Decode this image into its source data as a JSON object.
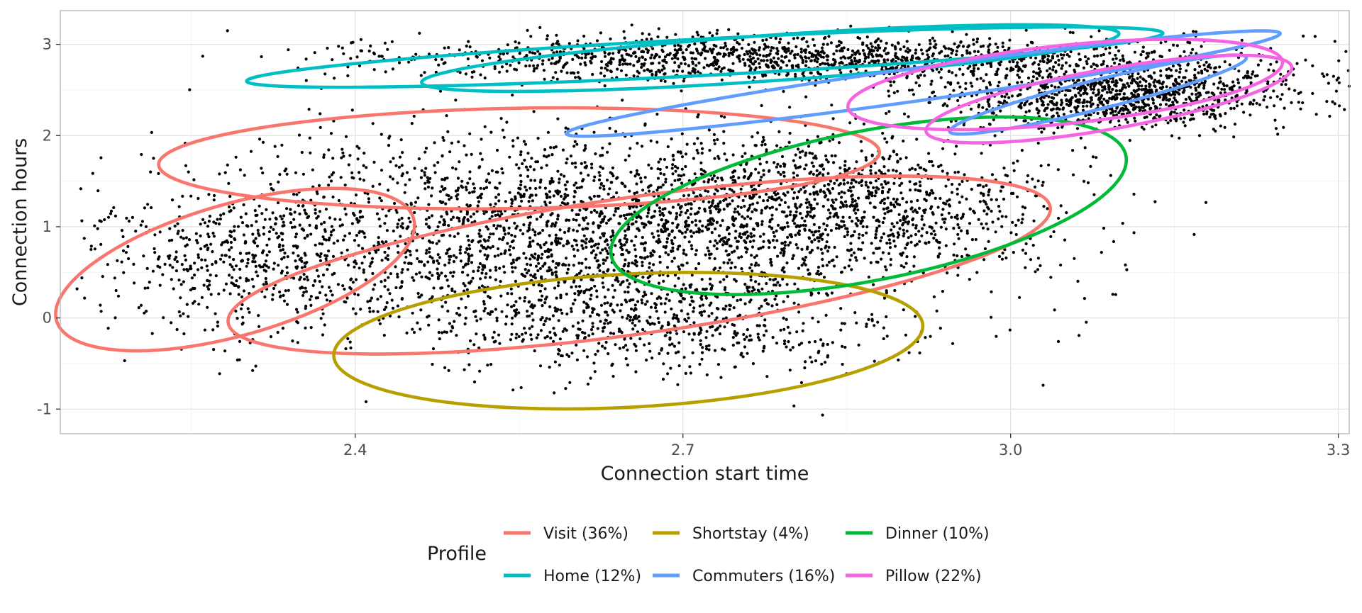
{
  "chart_data": {
    "type": "scatter",
    "xlabel": "Connection start time",
    "ylabel": "Connection hours",
    "xlim": [
      2.13,
      3.31
    ],
    "ylim": [
      -1.27,
      3.37
    ],
    "xticks": [
      2.4,
      2.7,
      3.0,
      3.3
    ],
    "xtick_labels": [
      "2.4",
      "2.7",
      "3.0",
      "3.3"
    ],
    "yticks": [
      -1,
      0,
      1,
      2,
      3
    ],
    "ytick_labels": [
      "-1",
      "0",
      "1",
      "2",
      "3"
    ],
    "grid": true,
    "legend": {
      "title": "Profile",
      "placement": "bottom",
      "items": [
        {
          "label": "Visit (36%)",
          "color": "#F8766D"
        },
        {
          "label": "Shortstay (4%)",
          "color": "#B79F00"
        },
        {
          "label": "Dinner (10%)",
          "color": "#00BA38"
        },
        {
          "label": "Home (12%)",
          "color": "#00BFC4"
        },
        {
          "label": "Commuters (16%)",
          "color": "#619CFF"
        },
        {
          "label": "Pillow (22%)",
          "color": "#F564E3"
        }
      ]
    },
    "point_clouds": [
      {
        "center": [
          2.6,
          0.95
        ],
        "spread": [
          0.17,
          0.55
        ],
        "count": 2600
      },
      {
        "center": [
          2.85,
          1.25
        ],
        "spread": [
          0.09,
          0.38
        ],
        "count": 900
      },
      {
        "center": [
          2.3,
          0.6
        ],
        "spread": [
          0.07,
          0.4
        ],
        "count": 400
      },
      {
        "center": [
          2.68,
          -0.1
        ],
        "spread": [
          0.11,
          0.28
        ],
        "count": 500
      },
      {
        "center": [
          2.8,
          2.85
        ],
        "spread": [
          0.19,
          0.12
        ],
        "count": 1400
      },
      {
        "center": [
          3.1,
          2.45
        ],
        "spread": [
          0.08,
          0.18
        ],
        "count": 1100
      }
    ],
    "ellipses": [
      {
        "series": "Visit (36%)",
        "color": "#F8766D",
        "center": [
          2.66,
          0.58
        ],
        "semi_axes": [
          0.38,
          0.75
        ],
        "angle_deg": -8
      },
      {
        "series": "Visit (36%)",
        "color": "#F8766D",
        "center": [
          2.55,
          1.75
        ],
        "semi_axes": [
          0.33,
          0.55
        ],
        "angle_deg": -1
      },
      {
        "series": "Visit (36%)",
        "color": "#F8766D",
        "center": [
          2.29,
          0.53
        ],
        "semi_axes": [
          0.17,
          0.72
        ],
        "angle_deg": -16
      },
      {
        "series": "Shortstay (4%)",
        "color": "#B79F00",
        "center": [
          2.65,
          -0.25
        ],
        "semi_axes": [
          0.27,
          0.73
        ],
        "angle_deg": -3
      },
      {
        "series": "Dinner (10%)",
        "color": "#00BA38",
        "center": [
          2.87,
          1.23
        ],
        "semi_axes": [
          0.24,
          0.82
        ],
        "angle_deg": -11
      },
      {
        "series": "Home (12%)",
        "color": "#00BFC4",
        "center": [
          2.72,
          2.86
        ],
        "semi_axes": [
          0.42,
          0.2
        ],
        "angle_deg": -3
      },
      {
        "series": "Home (12%)",
        "color": "#00BFC4",
        "center": [
          2.78,
          2.85
        ],
        "semi_axes": [
          0.32,
          0.25
        ],
        "angle_deg": -4
      },
      {
        "series": "Commuters (16%)",
        "color": "#619CFF",
        "center": [
          2.92,
          2.57
        ],
        "semi_axes": [
          0.33,
          0.18
        ],
        "angle_deg": -8
      },
      {
        "series": "Commuters (16%)",
        "color": "#619CFF",
        "center": [
          3.08,
          2.45
        ],
        "semi_axes": [
          0.14,
          0.16
        ],
        "angle_deg": -14
      },
      {
        "series": "Pillow (22%)",
        "color": "#F564E3",
        "center": [
          3.05,
          2.56
        ],
        "semi_axes": [
          0.2,
          0.43
        ],
        "angle_deg": -6
      },
      {
        "series": "Pillow (22%)",
        "color": "#F564E3",
        "center": [
          3.09,
          2.4
        ],
        "semi_axes": [
          0.17,
          0.33
        ],
        "angle_deg": -10
      }
    ]
  }
}
